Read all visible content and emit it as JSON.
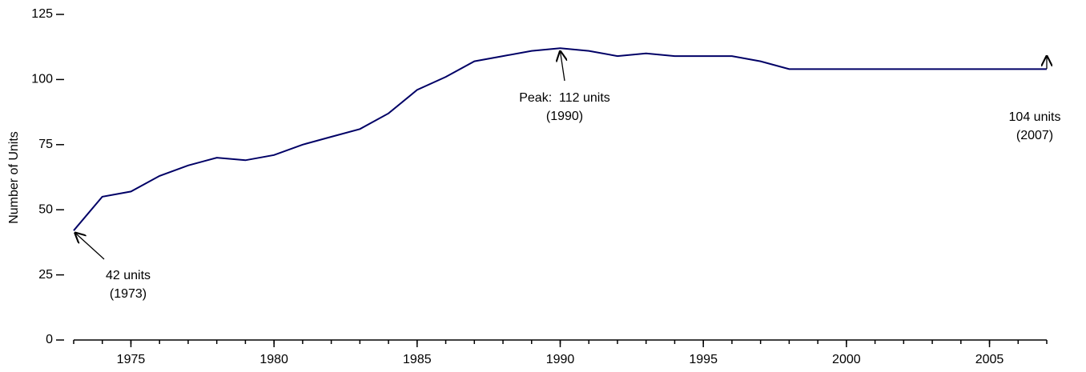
{
  "chart_data": {
    "type": "line",
    "y_label": "Number of Units",
    "x": [
      1973,
      1974,
      1975,
      1976,
      1977,
      1978,
      1979,
      1980,
      1981,
      1982,
      1983,
      1984,
      1985,
      1986,
      1987,
      1988,
      1989,
      1990,
      1991,
      1992,
      1993,
      1994,
      1995,
      1996,
      1997,
      1998,
      1999,
      2000,
      2001,
      2002,
      2003,
      2004,
      2005,
      2006,
      2007
    ],
    "series": [
      {
        "color": "#000066",
        "values": [
          42,
          55,
          57,
          63,
          67,
          70,
          69,
          71,
          75,
          78,
          81,
          87,
          96,
          101,
          107,
          109,
          111,
          112,
          111,
          109,
          110,
          109,
          109,
          109,
          107,
          104,
          104,
          104,
          104,
          104,
          104,
          104,
          104,
          104,
          104
        ]
      }
    ],
    "xlim": [
      1973,
      2007
    ],
    "xticks": [
      1975,
      1980,
      1985,
      1990,
      1995,
      2000,
      2005
    ],
    "ylim": [
      0,
      125
    ],
    "yticks": [
      0,
      25,
      50,
      75,
      100,
      125
    ],
    "annotations": [
      {
        "lines": [
          "42 units",
          "(1973)"
        ]
      },
      {
        "lines": [
          "Peak:  112 units",
          "(1990)"
        ]
      },
      {
        "lines": [
          "104 units",
          "(2007)"
        ]
      }
    ]
  }
}
